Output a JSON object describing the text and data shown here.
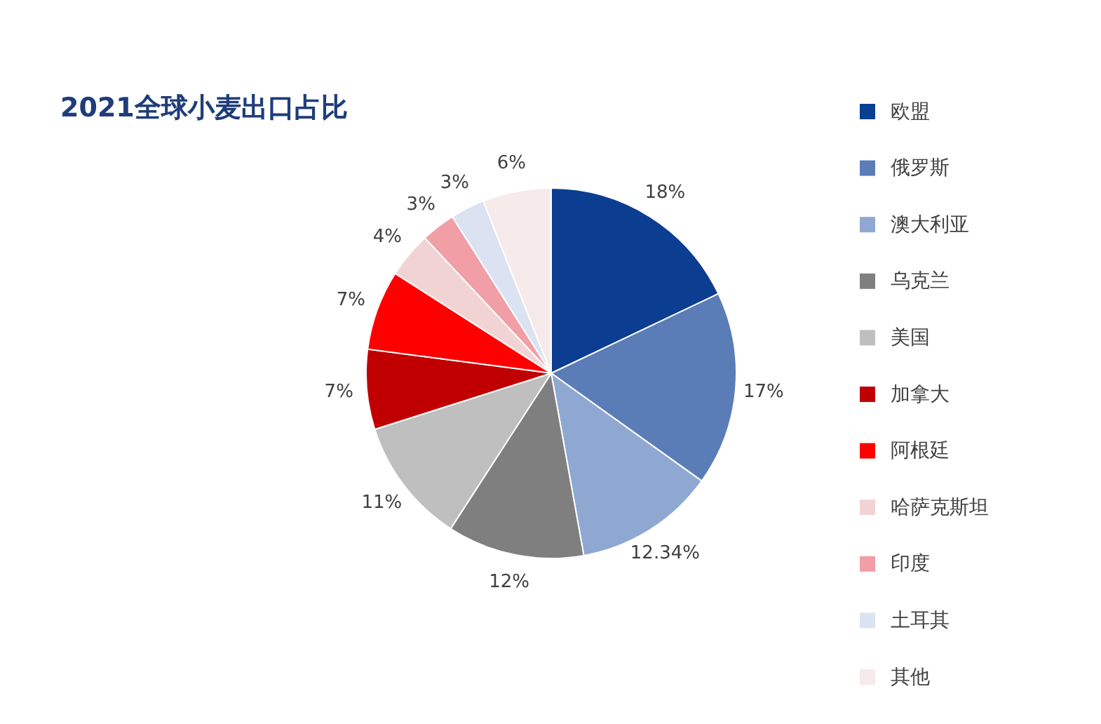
{
  "chart_data": {
    "type": "pie",
    "title": "2021全球小麦出口占比",
    "categories": [
      "欧盟",
      "俄罗斯",
      "澳大利亚",
      "乌克兰",
      "美国",
      "加拿大",
      "阿根廷",
      "哈萨克斯坦",
      "印度",
      "土耳其",
      "其他"
    ],
    "values": [
      18,
      17,
      12.34,
      12,
      11,
      7,
      7,
      4,
      3,
      3,
      6
    ],
    "value_labels": [
      "18%",
      "17%",
      "12.34%",
      "12%",
      "11%",
      "7%",
      "7%",
      "4%",
      "3%",
      "3%",
      "6%"
    ],
    "colors": [
      "#0b3d91",
      "#5a7db8",
      "#8fa8d2",
      "#7f7f7f",
      "#bfbfbf",
      "#c00000",
      "#ff0000",
      "#f2d3d3",
      "#f19ea6",
      "#dbe3f2",
      "#f6eaea"
    ],
    "legend": "right"
  }
}
